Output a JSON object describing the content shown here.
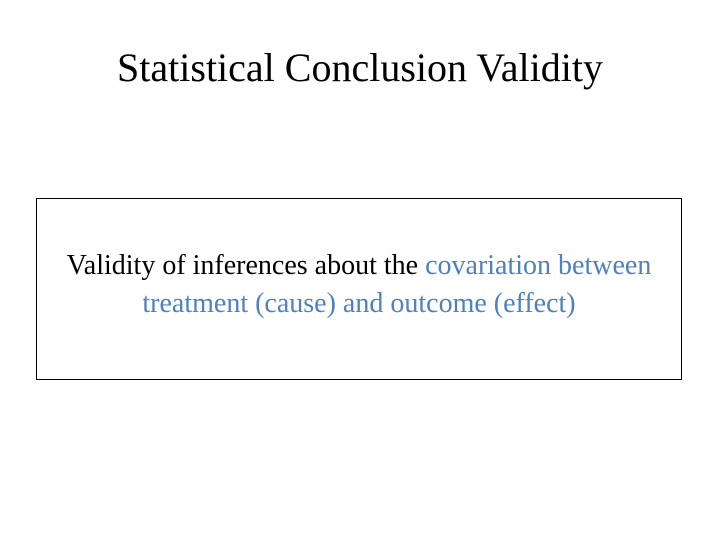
{
  "slide": {
    "title": "Statistical Conclusion Validity",
    "definition": {
      "plain_text": "Validity of inferences about the",
      "highlighted_text": "covariation between treatment (cause) and outcome (effect)",
      "highlight_color": "#4f81bd",
      "text_color": "#000000"
    }
  }
}
